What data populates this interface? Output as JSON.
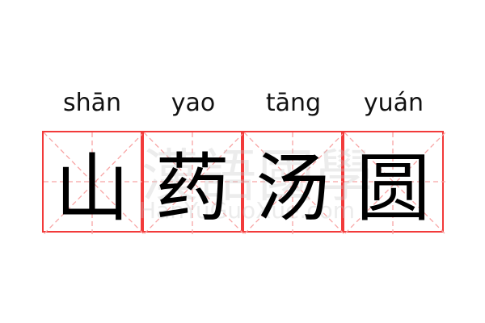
{
  "entries": [
    {
      "pinyin": "shān",
      "hanzi": "山"
    },
    {
      "pinyin": "yao",
      "hanzi": "药"
    },
    {
      "pinyin": "tāng",
      "hanzi": "汤"
    },
    {
      "pinyin": "yuán",
      "hanzi": "圆"
    }
  ],
  "watermark": {
    "chinese": "漢語國學",
    "latin": "HanYuGuoXue.com"
  },
  "colors": {
    "grid_border": "#f23a3a",
    "guide_lines": "#f8a5a5",
    "text": "#000000"
  }
}
